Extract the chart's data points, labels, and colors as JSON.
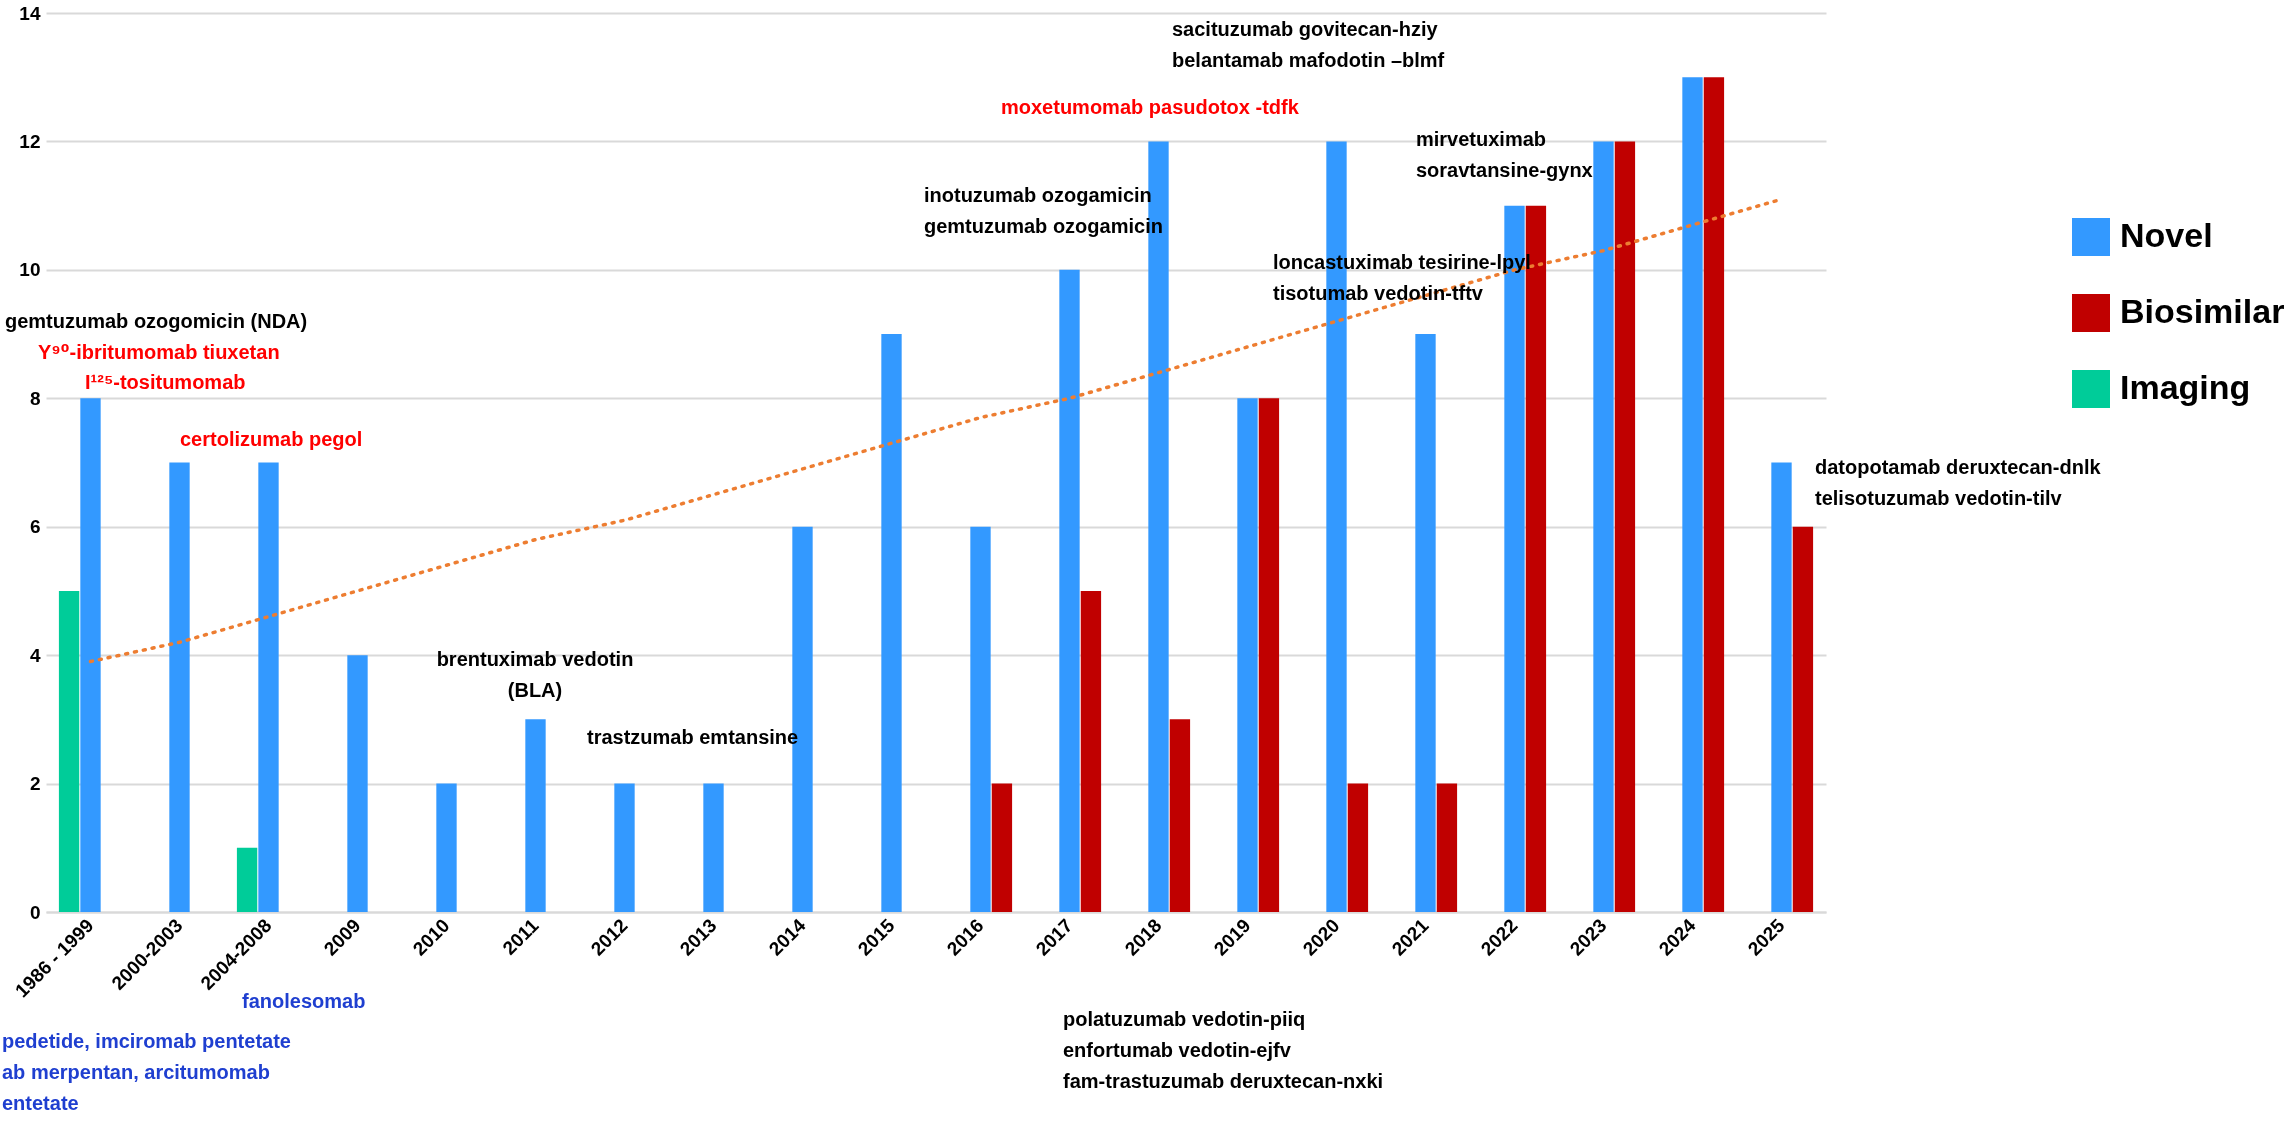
{
  "chart_data": {
    "type": "bar",
    "categories": [
      "1986 - 1999",
      "2000-2003",
      "2004-2008",
      "2009",
      "2010",
      "2011",
      "2012",
      "2013",
      "2014",
      "2015",
      "2016",
      "2017",
      "2018",
      "2019",
      "2020",
      "2021",
      "2022",
      "2023",
      "2024",
      "2025"
    ],
    "series": [
      {
        "name": "Novel",
        "color": "#3399ff",
        "values": [
          8,
          7,
          7,
          4,
          2,
          3,
          2,
          2,
          6,
          9,
          6,
          10,
          12,
          8,
          12,
          9,
          11,
          12,
          13,
          7
        ]
      },
      {
        "name": "Biosimilar",
        "color": "#c00000",
        "values": [
          null,
          null,
          null,
          null,
          null,
          null,
          null,
          null,
          null,
          null,
          2,
          5,
          3,
          8,
          2,
          2,
          11,
          12,
          13,
          6
        ]
      },
      {
        "name": "Imaging",
        "color": "#00cc99",
        "values": [
          5,
          null,
          1,
          null,
          null,
          null,
          null,
          null,
          null,
          null,
          null,
          null,
          null,
          null,
          null,
          null,
          null,
          null,
          null,
          null
        ]
      },
      {
        "type": "line",
        "values": [
          3.9,
          4.2,
          4.6,
          5.0,
          5.4,
          5.8,
          6.1,
          6.5,
          6.9,
          7.3,
          7.7,
          8.0,
          8.4,
          8.8,
          9.2,
          9.6,
          10.0,
          10.3,
          10.7,
          11.1
        ],
        "color": "#ed7d31",
        "line_style": "dotted",
        "marker": "none"
      }
    ],
    "ylim": [
      0,
      14
    ],
    "yticks": [
      0,
      2,
      4,
      6,
      8,
      10,
      12,
      14
    ],
    "grid": "y",
    "legend": "right",
    "annotations": [
      "gemtuzumab ozogomicin (NDA)",
      "Y⁹⁰-ibritumomab tiuxetan",
      "I¹²⁵-tositumomab",
      "certolizumab pegol",
      "brentuximab vedotin\n(BLA)",
      "trastzumab emtansine",
      "inotuzumab ozogamicin\ngemtuzumab ozogamicin",
      "moxetumomab pasudotox -tdfk",
      "sacituzumab govitecan-hziy\nbelantamab mafodotin –blmf",
      "mirvetuximab\nsoravtansine-gynx",
      "loncastuximab tesirine-lpyl\ntisotumab vedotin-tftv",
      "datopotamab deruxtecan-dnlk\ntelisotuzumab vedotin-tilv",
      "fanolesomab",
      "pedetide, imciromab pentetate\nab merpentan, arcitumomab\nentetate",
      "polatuzumab vedotin-piiq\nenfortumab vedotin-ejfv\nfam-trastuzumab deruxtecan-nxki"
    ]
  }
}
